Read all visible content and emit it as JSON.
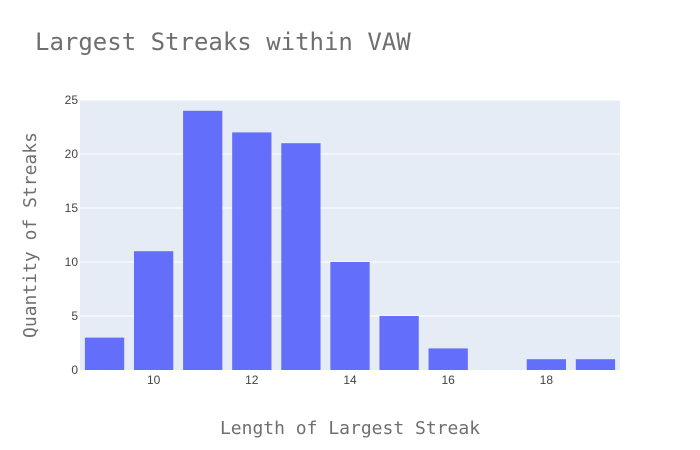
{
  "chart_data": {
    "type": "bar",
    "title": "Largest Streaks within VAW",
    "xlabel": "Length of Largest Streak",
    "ylabel": "Quantity of Streaks",
    "x": [
      9,
      10,
      11,
      12,
      13,
      14,
      15,
      16,
      18,
      19
    ],
    "values": [
      3,
      11,
      24,
      22,
      21,
      10,
      5,
      2,
      1,
      1
    ],
    "xlim": [
      8.5,
      19.5
    ],
    "ylim": [
      0,
      25
    ],
    "xticks": [
      10,
      12,
      14,
      16,
      18
    ],
    "yticks": [
      0,
      5,
      10,
      15,
      20,
      25
    ],
    "grid": true,
    "colors": {
      "bar": "#636efa",
      "plot_bg": "#e5ecf6",
      "grid": "#ffffff"
    }
  }
}
